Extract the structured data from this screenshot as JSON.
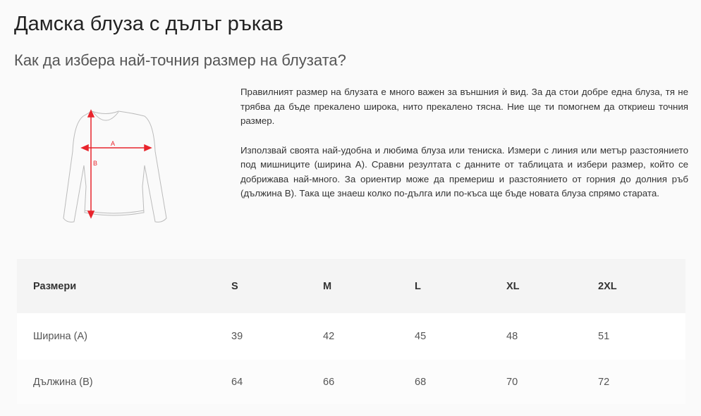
{
  "title": "Дамска блуза с дълъг ръкав",
  "subtitle": "Как да избера най-точния размер на блузата?",
  "diagram": {
    "label_a": "A",
    "label_b": "B",
    "arrow_color": "#e8242c"
  },
  "paragraphs": [
    "Правилният размер на блузата е много важен за външния ѝ вид. За да стои добре една блуза, тя не трябва да бъде прекалено широка, нито прекалено тясна. Ние ще ти помогнем да откриеш точния размер.",
    "Използвай своята най-удобна и любима блуза или тениска. Измери с линия или метър разстоянието под мишниците (ширина А). Сравни резултата с данните от таблицата и избери размер, който се добрижава най-много. За ориентир може да премериш и разстоянието от горния до долния ръб (дължина В). Така ще знаеш колко по-дълга или по-къса ще бъде новата блуза спрямо старата."
  ],
  "table": {
    "header": [
      "Размери",
      "S",
      "M",
      "L",
      "XL",
      "2XL"
    ],
    "rows": [
      [
        "Ширина (А)",
        "39",
        "42",
        "45",
        "48",
        "51"
      ],
      [
        "Дължина (В)",
        "64",
        "66",
        "68",
        "70",
        "72"
      ]
    ]
  }
}
